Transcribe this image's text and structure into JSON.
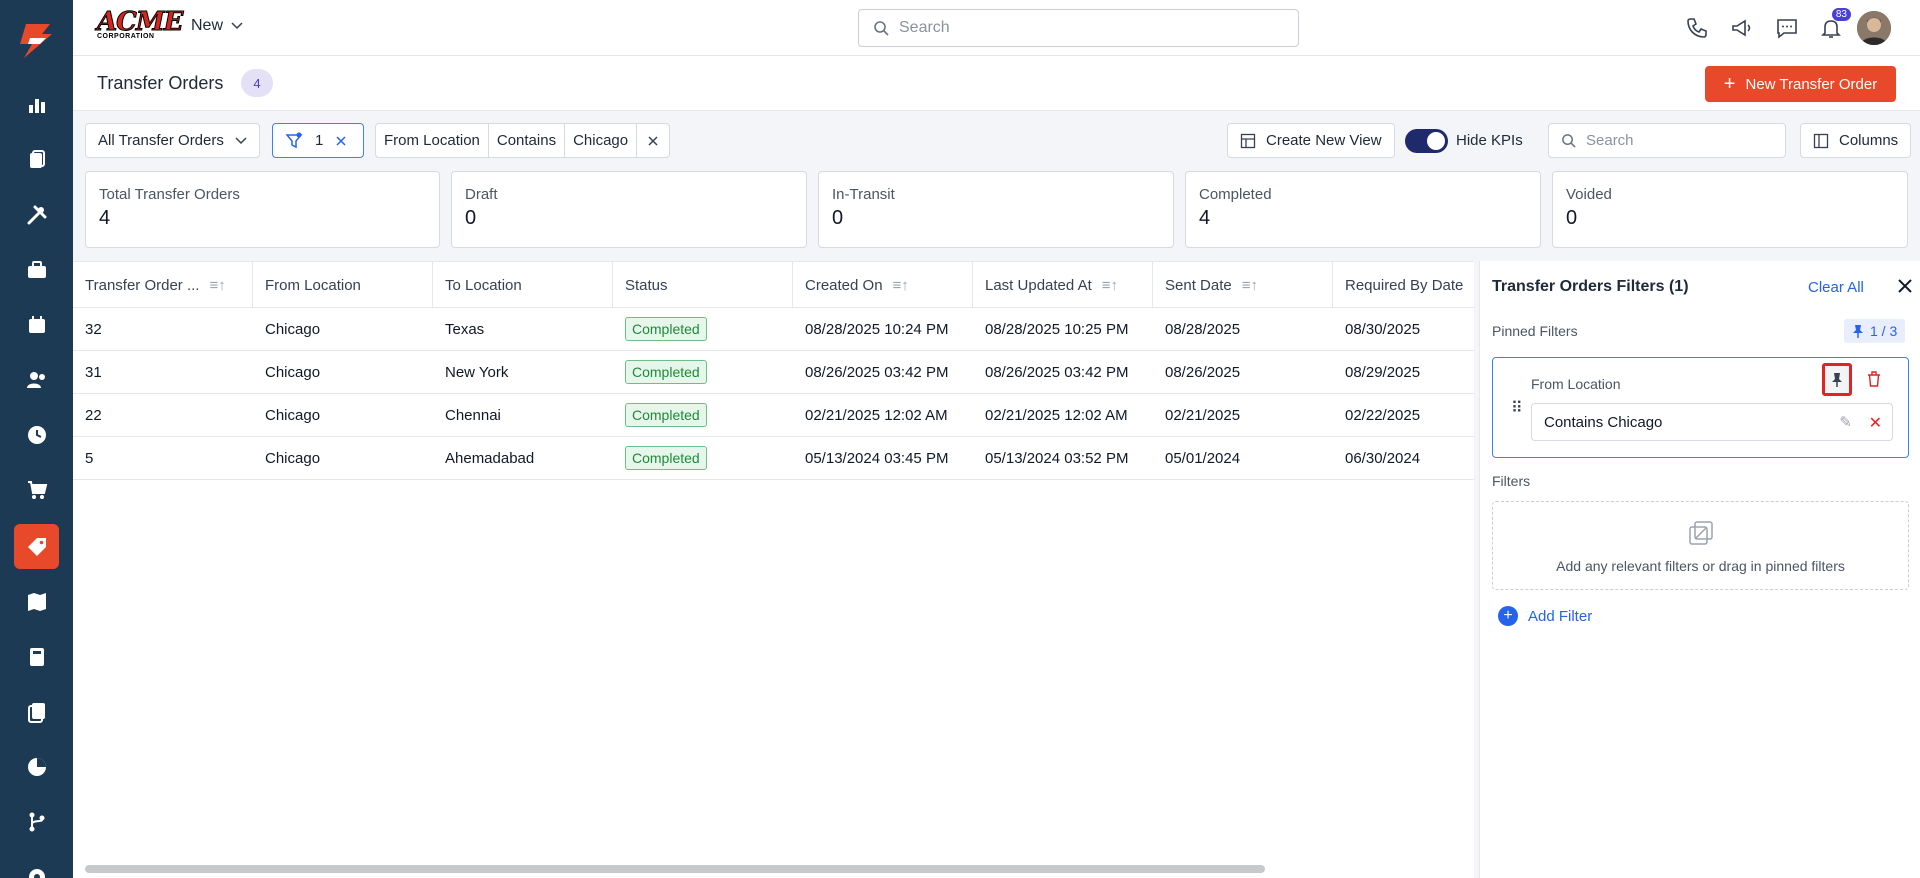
{
  "header": {
    "logo_word": "ACME",
    "logo_sub": "CORPORATION",
    "new_label": "New",
    "search_placeholder": "Search",
    "notification_count": "83"
  },
  "page": {
    "title": "Transfer Orders",
    "count": "4",
    "new_button": "New Transfer Order"
  },
  "toolbar": {
    "view_select": "All Transfer Orders",
    "filter_count": "1",
    "condition": {
      "field": "From Location",
      "operator": "Contains",
      "value": "Chicago"
    },
    "create_view": "Create New View",
    "hide_kpis": "Hide KPIs",
    "search_placeholder": "Search",
    "columns": "Columns"
  },
  "kpis": [
    {
      "label": "Total Transfer Orders",
      "value": "4"
    },
    {
      "label": "Draft",
      "value": "0"
    },
    {
      "label": "In-Transit",
      "value": "0"
    },
    {
      "label": "Completed",
      "value": "4"
    },
    {
      "label": "Voided",
      "value": "0"
    }
  ],
  "table": {
    "columns": [
      "Transfer Order ...",
      "From Location",
      "To Location",
      "Status",
      "Created On",
      "Last Updated At",
      "Sent Date",
      "Required By Date"
    ],
    "rows": [
      [
        "32",
        "Chicago",
        "Texas",
        "Completed",
        "08/28/2025 10:24 PM",
        "08/28/2025 10:25 PM",
        "08/28/2025",
        "08/30/2025"
      ],
      [
        "31",
        "Chicago",
        "New York",
        "Completed",
        "08/26/2025 03:42 PM",
        "08/26/2025 03:42 PM",
        "08/26/2025",
        "08/29/2025"
      ],
      [
        "22",
        "Chicago",
        "Chennai",
        "Completed",
        "02/21/2025 12:02 AM",
        "02/21/2025 12:02 AM",
        "02/21/2025",
        "02/22/2025"
      ],
      [
        "5",
        "Chicago",
        "Ahemadabad",
        "Completed",
        "05/13/2024 03:45 PM",
        "05/13/2024 03:52 PM",
        "05/01/2024",
        "06/30/2024"
      ]
    ]
  },
  "panel": {
    "title": "Transfer Orders Filters (1)",
    "clear_all": "Clear All",
    "pinned_heading": "Pinned Filters",
    "pinned_count": "1 / 3",
    "pinned_field": "From Location",
    "pinned_value": "Contains Chicago",
    "filters_heading": "Filters",
    "drop_hint": "Add any relevant filters or drag in pinned filters",
    "add_filter": "Add Filter"
  },
  "colors": {
    "accent": "#e8492a",
    "sidebar": "#1d3a54",
    "link": "#2563eb",
    "status_green": "#1f8a3a"
  }
}
